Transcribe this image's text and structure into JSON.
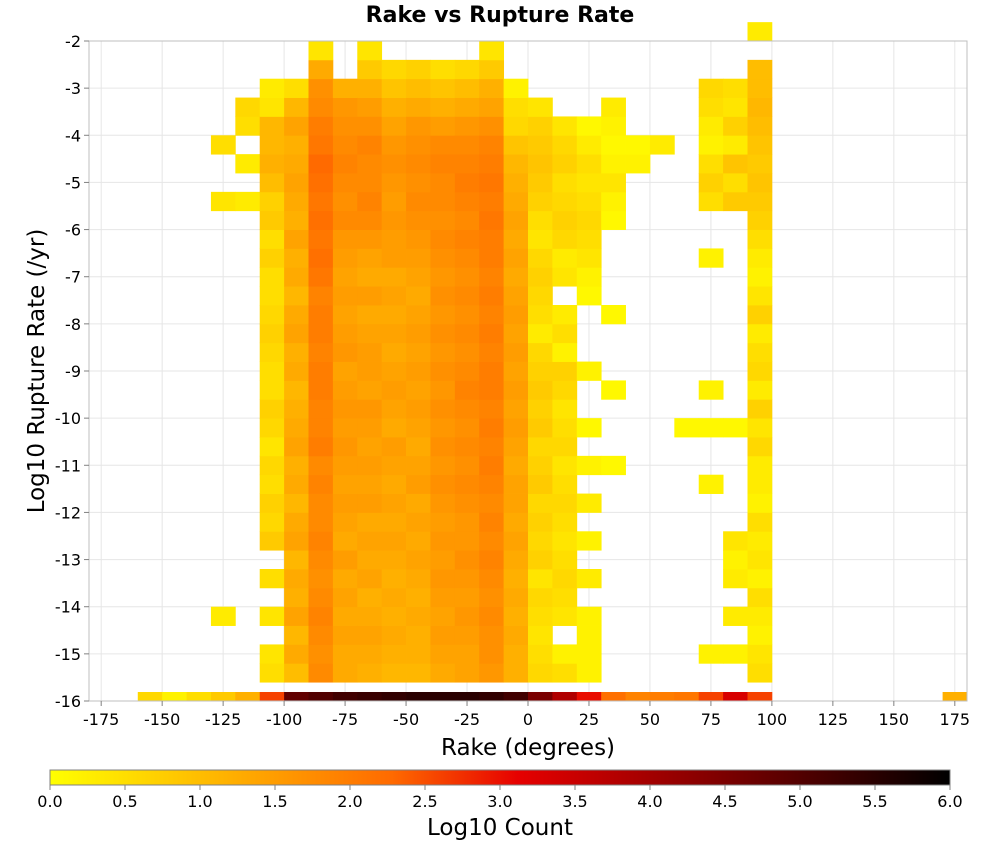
{
  "chart_data": {
    "type": "heatmap",
    "title": "Rake vs Rupture Rate",
    "xlabel": "Rake (degrees)",
    "ylabel": "Log10 Rupture Rate (/yr)",
    "xlim": [
      -180,
      180
    ],
    "ylim": [
      -16,
      -2
    ],
    "x_ticks": [
      -175,
      -150,
      -125,
      -100,
      -75,
      -50,
      -25,
      0,
      25,
      50,
      75,
      100,
      125,
      150,
      175
    ],
    "y_ticks": [
      -2,
      -3,
      -4,
      -5,
      -6,
      -7,
      -8,
      -9,
      -10,
      -11,
      -12,
      -13,
      -14,
      -15,
      -16
    ],
    "grid": true,
    "bin_width": 10,
    "colorbar": {
      "label": "Log10 Count",
      "min": 0.0,
      "max": 6.0,
      "ticks": [
        "0.0",
        "0.5",
        "1.0",
        "1.5",
        "2.0",
        "2.5",
        "3.0",
        "3.5",
        "4.0",
        "4.5",
        "5.0",
        "5.5",
        "6.0"
      ],
      "colors": [
        "#ffff00",
        "#ffb000",
        "#ff6a00",
        "#e60000",
        "#8a0000",
        "#000000"
      ]
    },
    "columns": [
      {
        "x_from": -160,
        "x_to": -150,
        "y_from": -16,
        "values": [
          0.6
        ]
      },
      {
        "x_from": -150,
        "x_to": -140,
        "y_from": -16,
        "values": [
          0.2
        ]
      },
      {
        "x_from": -140,
        "x_to": -130,
        "y_from": -16,
        "values": [
          0.5
        ]
      },
      {
        "x_from": -130,
        "x_to": -120,
        "y_from": -16,
        "values": [
          0.8,
          0,
          0,
          0,
          0.3,
          0,
          0,
          0,
          0,
          0,
          0,
          0,
          0,
          0,
          0,
          0,
          0,
          0,
          0,
          0,
          0,
          0,
          0,
          0,
          0,
          0,
          0.4,
          0,
          0,
          0.5
        ]
      },
      {
        "x_from": -120,
        "x_to": -110,
        "y_from": -16,
        "values": [
          1.2,
          0,
          0,
          0,
          0,
          0,
          0,
          0,
          0,
          0,
          0,
          0,
          0,
          0,
          0,
          0,
          0,
          0,
          0,
          0,
          0,
          0,
          0,
          0,
          0,
          0,
          0.3,
          0,
          0.3,
          0,
          0.5,
          0.6
        ]
      },
      {
        "x_from": -110,
        "x_to": -100,
        "y_from": -16,
        "values": [
          2.6,
          0.5,
          0.4,
          0,
          0.4,
          0,
          0.5,
          0,
          0.8,
          0.6,
          0.7,
          0.5,
          0.6,
          0.4,
          0.6,
          0.7,
          0.5,
          0.5,
          0.6,
          0.7,
          0.6,
          0.5,
          0.5,
          0.7,
          0.5,
          0.8,
          0.7,
          1.0,
          1.2,
          1.1,
          1.1,
          0.4,
          0.3
        ]
      },
      {
        "x_from": -100,
        "x_to": -90,
        "y_from": -16,
        "values": [
          4.8,
          1.0,
          1.3,
          1.1,
          1.4,
          1.2,
          1.3,
          1.1,
          1.4,
          1.3,
          1.1,
          1.3,
          1.2,
          1.4,
          1.3,
          1.2,
          1.1,
          1.3,
          1.2,
          1.4,
          1.3,
          1.1,
          1.3,
          1.2,
          1.4,
          1.2,
          1.3,
          1.4,
          1.3,
          1.2,
          1.4,
          1.1,
          0.5
        ]
      },
      {
        "x_from": -90,
        "x_to": -80,
        "y_from": -16,
        "values": [
          5.0,
          1.8,
          1.7,
          1.8,
          1.9,
          1.8,
          1.7,
          1.8,
          1.9,
          1.8,
          1.8,
          1.9,
          1.8,
          2.0,
          1.9,
          1.9,
          2.0,
          2.0,
          1.9,
          2.0,
          2.0,
          1.9,
          2.1,
          2.2,
          2.1,
          2.2,
          2.1,
          2.2,
          2.3,
          2.1,
          2.0,
          1.8,
          1.7,
          1.3,
          0.4
        ]
      },
      {
        "x_from": -80,
        "x_to": -70,
        "y_from": -16,
        "values": [
          5.2,
          1.3,
          1.3,
          1.4,
          1.3,
          1.4,
          1.3,
          1.5,
          1.3,
          1.4,
          1.5,
          1.4,
          1.5,
          1.6,
          1.5,
          1.6,
          1.5,
          1.4,
          1.6,
          1.5,
          1.4,
          1.5,
          1.4,
          1.5,
          1.6,
          1.8,
          1.7,
          1.8,
          1.9,
          1.8,
          1.7,
          1.6,
          1.2
        ]
      },
      {
        "x_from": -70,
        "x_to": -60,
        "y_from": -16,
        "values": [
          5.3,
          1.2,
          1.3,
          1.4,
          1.3,
          1.2,
          1.4,
          1.3,
          1.4,
          1.3,
          1.5,
          1.4,
          1.5,
          1.4,
          1.5,
          1.6,
          1.4,
          1.5,
          1.5,
          1.4,
          1.3,
          1.5,
          1.3,
          1.4,
          1.6,
          1.8,
          1.9,
          1.8,
          1.8,
          1.9,
          1.7,
          1.5,
          1.2,
          0.8,
          0.4
        ]
      },
      {
        "x_from": -60,
        "x_to": -50,
        "y_from": -16,
        "values": [
          5.4,
          1.1,
          1.2,
          1.3,
          1.2,
          1.3,
          1.2,
          1.3,
          1.4,
          1.3,
          1.4,
          1.3,
          1.4,
          1.5,
          1.3,
          1.4,
          1.5,
          1.4,
          1.3,
          1.4,
          1.3,
          1.4,
          1.3,
          1.5,
          1.5,
          1.6,
          1.5,
          1.6,
          1.7,
          1.6,
          1.4,
          1.2,
          0.9,
          0.6
        ]
      },
      {
        "x_from": -50,
        "x_to": -40,
        "y_from": -16,
        "values": [
          5.5,
          1.1,
          1.2,
          1.2,
          1.3,
          1.2,
          1.3,
          1.4,
          1.3,
          1.4,
          1.3,
          1.5,
          1.4,
          1.3,
          1.4,
          1.5,
          1.4,
          1.5,
          1.4,
          1.5,
          1.4,
          1.3,
          1.4,
          1.5,
          1.6,
          1.7,
          1.8,
          1.7,
          1.8,
          1.7,
          1.6,
          1.3,
          1.0,
          0.7
        ]
      },
      {
        "x_from": -40,
        "x_to": -30,
        "y_from": -16,
        "values": [
          5.5,
          1.3,
          1.4,
          1.5,
          1.4,
          1.5,
          1.6,
          1.5,
          1.6,
          1.5,
          1.6,
          1.7,
          1.6,
          1.7,
          1.6,
          1.7,
          1.6,
          1.7,
          1.6,
          1.7,
          1.6,
          1.7,
          1.6,
          1.7,
          1.8,
          1.7,
          1.8,
          1.8,
          1.9,
          1.8,
          1.5,
          1.2,
          0.9,
          0.5
        ]
      },
      {
        "x_from": -30,
        "x_to": -20,
        "y_from": -16,
        "values": [
          5.5,
          1.4,
          1.4,
          1.5,
          1.6,
          1.5,
          1.6,
          1.7,
          1.6,
          1.6,
          1.7,
          1.8,
          1.7,
          1.8,
          1.7,
          1.8,
          1.9,
          1.8,
          1.7,
          1.8,
          1.7,
          1.8,
          1.7,
          1.8,
          1.9,
          1.8,
          1.9,
          2.0,
          1.9,
          1.8,
          1.6,
          1.3,
          1.0,
          0.6
        ]
      },
      {
        "x_from": -20,
        "x_to": -10,
        "y_from": -16,
        "values": [
          5.4,
          1.6,
          1.7,
          1.7,
          1.8,
          1.7,
          1.8,
          1.9,
          1.8,
          1.9,
          1.8,
          1.9,
          2.0,
          1.9,
          2.0,
          1.9,
          2.0,
          2.0,
          1.9,
          2.0,
          1.9,
          2.0,
          1.9,
          2.0,
          2.0,
          2.1,
          2.0,
          2.1,
          2.0,
          1.9,
          1.7,
          1.4,
          1.2,
          0.8,
          0.4
        ]
      },
      {
        "x_from": -10,
        "x_to": 0,
        "y_from": -16,
        "values": [
          5.2,
          1.2,
          1.2,
          1.3,
          1.2,
          1.3,
          1.2,
          1.3,
          1.4,
          1.3,
          1.4,
          1.4,
          1.3,
          1.4,
          1.5,
          1.4,
          1.5,
          1.4,
          1.5,
          1.4,
          1.5,
          1.4,
          1.3,
          1.4,
          1.3,
          1.4,
          1.3,
          1.2,
          1.1,
          0.9,
          0.6,
          0.5,
          0.2
        ]
      },
      {
        "x_from": 0,
        "x_to": 10,
        "y_from": -16,
        "values": [
          4.5,
          0.6,
          0.5,
          0.4,
          0.5,
          0.6,
          0.4,
          0.7,
          0.6,
          0.7,
          0.6,
          0.8,
          0.7,
          0.6,
          0.8,
          0.7,
          0.8,
          0.7,
          0.6,
          0.3,
          0.5,
          0.6,
          0.7,
          0.6,
          0.4,
          0.5,
          0.7,
          0.8,
          0.9,
          0.8,
          0.7,
          0.4
        ]
      },
      {
        "x_from": 10,
        "x_to": 20,
        "y_from": -16,
        "values": [
          3.8,
          0.5,
          0.2,
          0.0,
          0.4,
          0.5,
          0.6,
          0.5,
          0.4,
          0.5,
          0.6,
          0.5,
          0.4,
          0.6,
          0.5,
          0.4,
          0.6,
          0.7,
          0.2,
          0.5,
          0.3,
          0.0,
          0.4,
          0.3,
          0.6,
          0.7,
          0.6,
          0.5,
          0.7,
          0.6,
          0.4
        ]
      },
      {
        "x_from": 20,
        "x_to": 30,
        "y_from": -16,
        "values": [
          3.0,
          0.2,
          0.2,
          0.2,
          0.2,
          0,
          0.3,
          0,
          0.2,
          0,
          0.3,
          0,
          0.2,
          0,
          0.1,
          0,
          0,
          0.2,
          0,
          0,
          0,
          0.1,
          0.2,
          0.4,
          0.5,
          0.6,
          0.5,
          0.4,
          0.5,
          0.3,
          0.1
        ]
      },
      {
        "x_from": 30,
        "x_to": 40,
        "y_from": -16,
        "values": [
          2.2,
          0,
          0,
          0,
          0,
          0,
          0,
          0,
          0,
          0,
          0,
          0,
          0.1,
          0,
          0,
          0,
          0.1,
          0,
          0,
          0,
          0.1,
          0,
          0,
          0,
          0,
          0.1,
          0.2,
          0.4,
          0.2,
          0.1,
          0.2,
          0.3
        ]
      },
      {
        "x_from": 40,
        "x_to": 50,
        "y_from": -16,
        "values": [
          1.9,
          0,
          0,
          0,
          0,
          0,
          0,
          0,
          0,
          0,
          0,
          0,
          0,
          0,
          0,
          0,
          0,
          0,
          0,
          0,
          0,
          0,
          0,
          0,
          0,
          0,
          0,
          0,
          0.2,
          0.1
        ]
      },
      {
        "x_from": 50,
        "x_to": 60,
        "y_from": -16,
        "values": [
          2.0,
          0,
          0,
          0,
          0,
          0,
          0,
          0,
          0,
          0,
          0,
          0,
          0,
          0,
          0,
          0,
          0,
          0,
          0,
          0,
          0,
          0,
          0,
          0,
          0,
          0,
          0,
          0,
          0,
          0.3
        ]
      },
      {
        "x_from": 60,
        "x_to": 70,
        "y_from": -16,
        "values": [
          2.1,
          0,
          0,
          0,
          0,
          0,
          0,
          0,
          0,
          0,
          0,
          0,
          0,
          0,
          0.1
        ]
      },
      {
        "x_from": 70,
        "x_to": 80,
        "y_from": -16,
        "values": [
          2.6,
          0,
          0.2,
          0,
          0,
          0,
          0,
          0,
          0,
          0,
          0,
          0.2,
          0,
          0,
          0.1,
          0,
          0.2,
          0,
          0,
          0,
          0,
          0,
          0,
          0.2,
          0,
          0,
          0.5,
          0.7,
          0.5,
          0.2,
          0.3,
          0.5,
          0.6
        ]
      },
      {
        "x_from": 80,
        "x_to": 90,
        "y_from": -16,
        "values": [
          3.3,
          0,
          0.2,
          0,
          0.3,
          0,
          0.3,
          0.2,
          0.4,
          0,
          0,
          0,
          0,
          0,
          0.1,
          0,
          0,
          0,
          0,
          0,
          0,
          0,
          0,
          0,
          0,
          0,
          0.8,
          0.5,
          0.9,
          0.3,
          0.7,
          0.4,
          0.5
        ]
      },
      {
        "x_from": 90,
        "x_to": 100,
        "y_from": -16,
        "values": [
          2.6,
          0.5,
          0.4,
          0.2,
          0.3,
          0.5,
          0.2,
          0.4,
          0.3,
          0.5,
          0.2,
          0.3,
          0.3,
          0.6,
          0.4,
          0.7,
          0.3,
          0.6,
          0.5,
          0.3,
          0.7,
          0.4,
          0.2,
          0.3,
          0.5,
          0.7,
          0.8,
          0.9,
          0.8,
          0.9,
          1.0,
          1.1,
          1.0,
          1.0,
          0,
          0.3
        ]
      },
      {
        "x_from": 170,
        "x_to": 180,
        "y_from": -16,
        "values": [
          1.2
        ]
      }
    ]
  }
}
